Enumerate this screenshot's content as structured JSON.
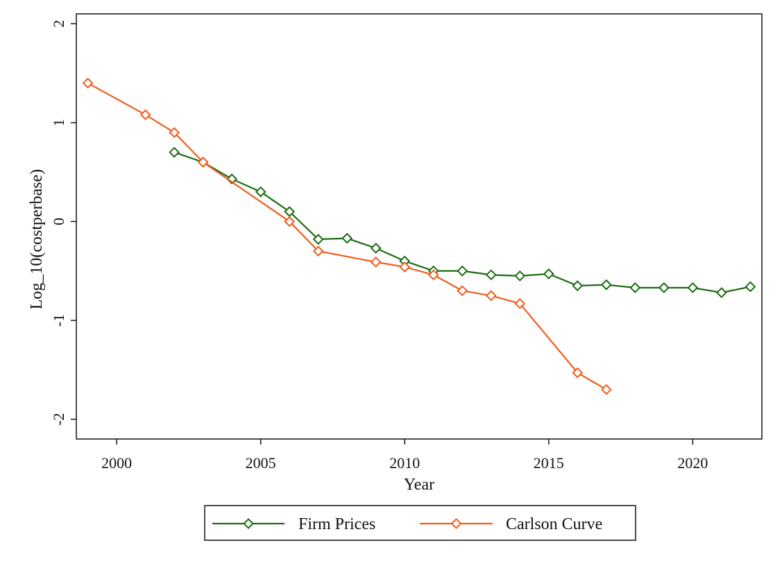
{
  "chart_data": {
    "type": "line",
    "xlabel": "Year",
    "ylabel": "Log_10(costperbase)",
    "xlim": [
      1998.6,
      2022.4
    ],
    "ylim": [
      -2.2,
      2.1
    ],
    "xticks": [
      2000,
      2005,
      2010,
      2015,
      2020
    ],
    "xtick_labels": [
      "2000",
      "2005",
      "2010",
      "2015",
      "2020"
    ],
    "yticks": [
      2,
      1,
      0,
      -1,
      -2
    ],
    "ytick_labels": [
      "2",
      "1",
      "0",
      "-1",
      "-2"
    ],
    "grid": false,
    "legend_position": "bottom",
    "series": [
      {
        "name": "Firm Prices",
        "color": "#1a6b12",
        "marker": "diamond",
        "x": [
          2002,
          2003,
          2004,
          2005,
          2006,
          2007,
          2008,
          2009,
          2010,
          2011,
          2012,
          2013,
          2014,
          2015,
          2016,
          2017,
          2018,
          2019,
          2020,
          2021,
          2022
        ],
        "y": [
          0.7,
          0.6,
          0.43,
          0.3,
          0.1,
          -0.18,
          -0.17,
          -0.27,
          -0.4,
          -0.5,
          -0.5,
          -0.54,
          -0.55,
          -0.53,
          -0.65,
          -0.64,
          -0.67,
          -0.67,
          -0.67,
          -0.72,
          -0.66
        ]
      },
      {
        "name": "Carlson Curve",
        "color": "#f25b1c",
        "marker": "diamond",
        "x": [
          1999,
          2001,
          2002,
          2003,
          2006,
          2007,
          2009,
          2010,
          2011,
          2012,
          2013,
          2014,
          2016,
          2017
        ],
        "y": [
          1.4,
          1.08,
          0.9,
          0.6,
          0.0,
          -0.3,
          -0.41,
          -0.46,
          -0.54,
          -0.7,
          -0.75,
          -0.83,
          -1.53,
          -1.7
        ]
      }
    ]
  }
}
